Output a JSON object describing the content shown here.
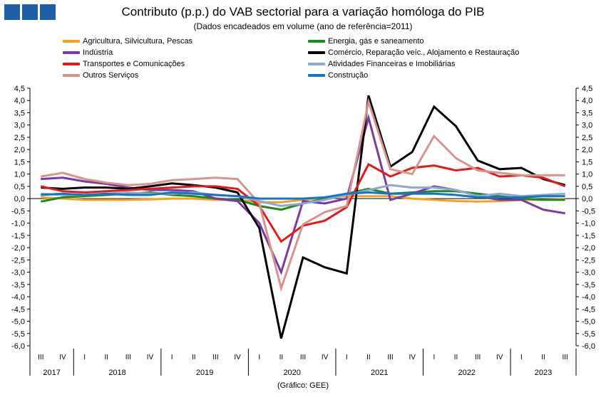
{
  "header": {
    "title": "Contributo (p.p.) do VAB sectorial para a variação homóloga do PIB",
    "subtitle": "(Dados encadeados em volume (ano de referência=2011)"
  },
  "source": "(Gráfico: GEE)",
  "logo": {
    "blocks": 3,
    "color": "#1f5fa8"
  },
  "chart_data": {
    "type": "line",
    "ylim": [
      -6.0,
      4.5
    ],
    "yticks": [
      "4,5",
      "4,0",
      "3,5",
      "3,0",
      "2,5",
      "2,0",
      "1,5",
      "1,0",
      "0,5",
      "0,0",
      "-0,5",
      "-1,0",
      "-1,5",
      "-2,0",
      "-2,5",
      "-3,0",
      "-3,5",
      "-4,0",
      "-4,5",
      "-5,0",
      "-5,5",
      "-6,0"
    ],
    "quarters": [
      "III",
      "IV",
      "I",
      "II",
      "III",
      "IV",
      "I",
      "II",
      "III",
      "IV",
      "I",
      "II",
      "III",
      "IV",
      "I",
      "II",
      "III",
      "IV",
      "I",
      "II",
      "III",
      "IV",
      "I",
      "II",
      "III"
    ],
    "years": [
      {
        "label": "2017",
        "count": 2
      },
      {
        "label": "2018",
        "count": 4
      },
      {
        "label": "2019",
        "count": 4
      },
      {
        "label": "2020",
        "count": 4
      },
      {
        "label": "2021",
        "count": 4
      },
      {
        "label": "2022",
        "count": 4
      },
      {
        "label": "2023",
        "count": 3
      }
    ],
    "grid": false,
    "legend_position": "top",
    "series": [
      {
        "name": "Agricultura, Silvicultura, Pescas",
        "color": "#f4a21c",
        "values": [
          0.05,
          0.0,
          -0.05,
          -0.05,
          -0.05,
          -0.03,
          0.0,
          0.0,
          -0.05,
          -0.05,
          -0.15,
          -0.15,
          -0.05,
          0.05,
          0.1,
          0.1,
          0.1,
          0.0,
          -0.05,
          -0.1,
          -0.12,
          -0.1,
          -0.05,
          -0.05,
          -0.02
        ]
      },
      {
        "name": "Energia, gás e saneamento",
        "color": "#1e8a1e",
        "values": [
          -0.12,
          0.05,
          0.1,
          0.15,
          0.2,
          0.25,
          0.15,
          0.1,
          0.0,
          -0.05,
          -0.3,
          -0.45,
          -0.2,
          0.0,
          0.2,
          0.4,
          0.2,
          0.25,
          0.3,
          0.3,
          0.2,
          0.1,
          0.0,
          -0.05,
          -0.05
        ]
      },
      {
        "name": "Indústria",
        "color": "#7b3aa0",
        "values": [
          0.8,
          0.85,
          0.7,
          0.6,
          0.45,
          0.35,
          0.35,
          0.3,
          0.0,
          -0.1,
          -1.0,
          -3.0,
          -0.1,
          -0.2,
          0.0,
          3.3,
          -0.05,
          0.2,
          0.5,
          0.35,
          0.1,
          -0.05,
          -0.05,
          -0.45,
          -0.6
        ]
      },
      {
        "name": "Comércio, Reparação veíc., Alojamento e Restauração",
        "color": "#000000",
        "values": [
          0.45,
          0.4,
          0.45,
          0.45,
          0.4,
          0.5,
          0.62,
          0.55,
          0.45,
          0.25,
          -1.2,
          -5.7,
          -2.4,
          -2.8,
          -3.05,
          4.2,
          1.3,
          1.9,
          3.75,
          2.95,
          1.55,
          1.2,
          1.25,
          0.8,
          0.55
        ]
      },
      {
        "name": "Transportes e Comunicações",
        "color": "#e01b1b",
        "values": [
          0.5,
          0.3,
          0.25,
          0.3,
          0.35,
          0.4,
          0.45,
          0.5,
          0.5,
          0.4,
          -0.3,
          -1.75,
          -1.1,
          -0.9,
          -0.35,
          1.4,
          0.9,
          1.25,
          1.35,
          1.15,
          1.25,
          0.9,
          0.95,
          0.85,
          0.5
        ]
      },
      {
        "name": "Atividades Financeiras e Imobiliárias",
        "color": "#8fa8cf",
        "values": [
          0.2,
          0.15,
          0.15,
          0.2,
          0.25,
          0.2,
          0.2,
          0.25,
          0.15,
          0.1,
          -0.1,
          -0.3,
          -0.2,
          -0.05,
          0.15,
          0.35,
          0.55,
          0.45,
          0.45,
          0.35,
          0.1,
          0.2,
          0.1,
          0.15,
          0.2
        ]
      },
      {
        "name": "Outros Serviços",
        "color": "#d4958e",
        "values": [
          0.9,
          1.05,
          0.8,
          0.65,
          0.55,
          0.6,
          0.75,
          0.8,
          0.85,
          0.8,
          -0.2,
          -3.65,
          -1.05,
          -0.55,
          -0.3,
          3.95,
          1.2,
          1.0,
          2.55,
          1.65,
          1.15,
          1.05,
          0.95,
          0.95,
          0.95
        ]
      },
      {
        "name": "Construção",
        "color": "#1674c4",
        "values": [
          0.15,
          0.2,
          0.15,
          0.2,
          0.15,
          0.15,
          0.25,
          0.2,
          0.15,
          0.1,
          0.0,
          0.0,
          0.0,
          0.05,
          0.2,
          0.25,
          0.2,
          0.2,
          0.2,
          0.15,
          0.05,
          0.05,
          0.05,
          0.1,
          0.1
        ]
      }
    ]
  }
}
